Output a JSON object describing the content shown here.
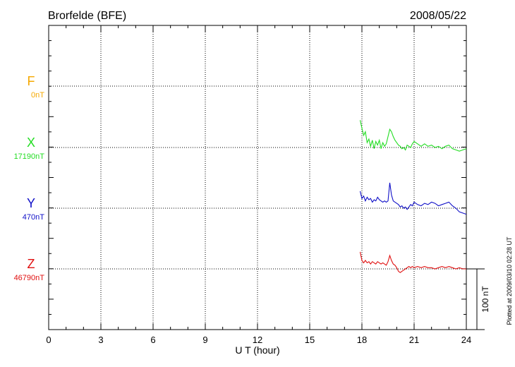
{
  "header": {
    "station": "Brorfelde (BFE)",
    "date": "2008/05/22"
  },
  "footer": {
    "plotted_note": "Plotted at 2009/03/10 02:28 UT",
    "scale_label": "100 nT"
  },
  "colors": {
    "F": "#f5a800",
    "X": "#22dd22",
    "Y": "#1010c8",
    "Z": "#e01010",
    "axis": "#000000",
    "grid": "#000000"
  },
  "chart_data": {
    "type": "line",
    "title": "Brorfelde (BFE)",
    "subtitle": "2008/05/22",
    "xlabel": "U T (hour)",
    "xlim": [
      0,
      24
    ],
    "xticks": [
      0,
      3,
      6,
      9,
      12,
      15,
      18,
      21,
      24
    ],
    "grid": true,
    "scale_bar_nT": 100,
    "series": [
      {
        "name": "F",
        "baseline_label": "0nT",
        "baseline": 0,
        "x": [],
        "y": []
      },
      {
        "name": "X",
        "baseline_label": "17190nT",
        "baseline": 17190,
        "x": [
          17.9,
          18.0,
          18.1,
          18.2,
          18.3,
          18.4,
          18.5,
          18.6,
          18.7,
          18.8,
          18.9,
          19.0,
          19.1,
          19.2,
          19.3,
          19.4,
          19.5,
          19.6,
          19.7,
          19.8,
          19.9,
          20.0,
          20.1,
          20.2,
          20.3,
          20.4,
          20.5,
          20.6,
          20.7,
          20.8,
          20.9,
          21.0,
          21.2,
          21.4,
          21.6,
          21.8,
          22.0,
          22.2,
          22.4,
          22.6,
          22.8,
          23.0,
          23.2,
          23.4,
          23.6,
          23.8,
          24.0
        ],
        "y": [
          45,
          32,
          20,
          26,
          8,
          14,
          2,
          12,
          -2,
          10,
          4,
          12,
          -2,
          8,
          2,
          6,
          18,
          30,
          26,
          18,
          12,
          8,
          4,
          2,
          -2,
          0,
          -4,
          4,
          2,
          0,
          6,
          10,
          6,
          2,
          6,
          2,
          4,
          0,
          2,
          -2,
          2,
          4,
          -2,
          -4,
          -6,
          -4,
          -2
        ]
      },
      {
        "name": "Y",
        "baseline_label": "470nT",
        "baseline": 470,
        "x": [
          17.9,
          18.0,
          18.1,
          18.2,
          18.3,
          18.4,
          18.5,
          18.6,
          18.7,
          18.8,
          18.9,
          19.0,
          19.1,
          19.2,
          19.3,
          19.4,
          19.5,
          19.6,
          19.7,
          19.8,
          19.9,
          20.0,
          20.1,
          20.2,
          20.3,
          20.4,
          20.5,
          20.6,
          20.7,
          20.8,
          20.9,
          21.0,
          21.2,
          21.4,
          21.6,
          21.8,
          22.0,
          22.2,
          22.4,
          22.6,
          22.8,
          23.0,
          23.2,
          23.4,
          23.6,
          23.8,
          24.0
        ],
        "y": [
          28,
          16,
          20,
          12,
          18,
          14,
          16,
          10,
          14,
          12,
          18,
          14,
          12,
          10,
          12,
          10,
          12,
          42,
          22,
          12,
          10,
          8,
          6,
          2,
          4,
          0,
          2,
          -2,
          2,
          6,
          4,
          10,
          6,
          4,
          8,
          6,
          10,
          8,
          4,
          6,
          8,
          10,
          4,
          0,
          -6,
          -8,
          -10
        ]
      },
      {
        "name": "Z",
        "baseline_label": "46790nT",
        "baseline": 46790,
        "x": [
          17.9,
          18.0,
          18.1,
          18.2,
          18.3,
          18.4,
          18.5,
          18.6,
          18.7,
          18.8,
          18.9,
          19.0,
          19.1,
          19.2,
          19.3,
          19.4,
          19.5,
          19.6,
          19.7,
          19.8,
          19.9,
          20.0,
          20.1,
          20.2,
          20.3,
          20.4,
          20.5,
          20.6,
          20.7,
          20.8,
          20.9,
          21.0,
          21.2,
          21.4,
          21.6,
          21.8,
          22.0,
          22.2,
          22.4,
          22.6,
          22.8,
          23.0,
          23.2,
          23.4,
          23.6,
          23.8,
          24.0
        ],
        "y": [
          28,
          14,
          10,
          14,
          10,
          12,
          8,
          12,
          10,
          8,
          12,
          10,
          8,
          10,
          8,
          6,
          12,
          22,
          14,
          8,
          6,
          2,
          -4,
          -6,
          -4,
          -2,
          0,
          2,
          4,
          2,
          4,
          2,
          4,
          2,
          4,
          2,
          2,
          0,
          2,
          4,
          2,
          4,
          2,
          0,
          2,
          0,
          0
        ]
      }
    ]
  }
}
